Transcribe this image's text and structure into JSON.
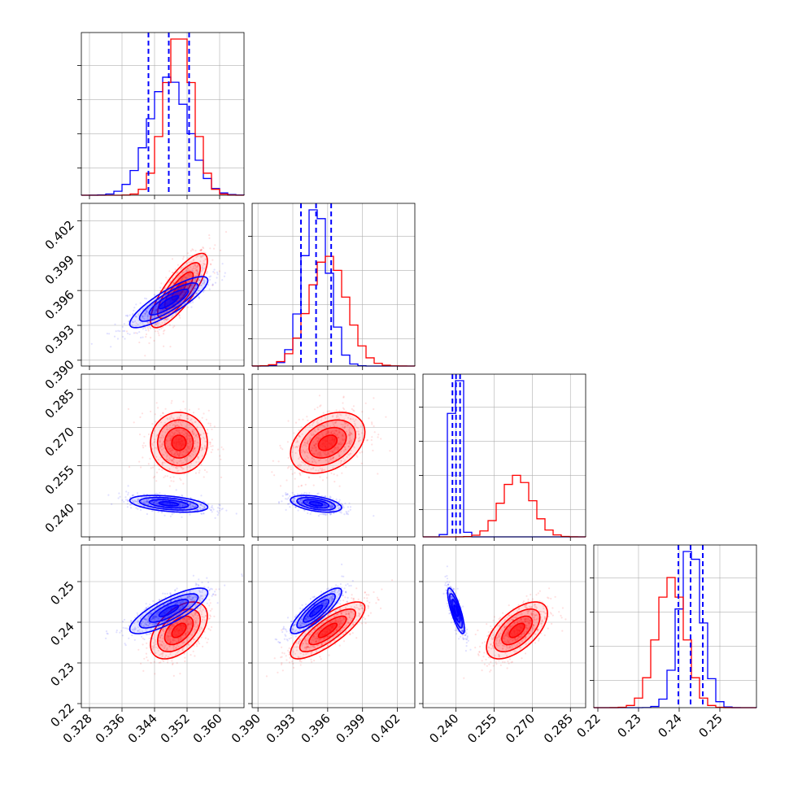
{
  "colors": {
    "series_a": "#0000ff",
    "series_b": "#ff0000",
    "grid": "#b0b0b0"
  },
  "chart_data": {
    "type": "corner",
    "parameters": [
      {
        "range": [
          0.326,
          0.366
        ],
        "ticks": [
          0.328,
          0.336,
          0.344,
          0.352,
          0.36
        ],
        "tick_labels": [
          "0.328",
          "0.336",
          "0.344",
          "0.352",
          "0.360"
        ]
      },
      {
        "range": [
          0.3895,
          0.4035
        ],
        "ticks": [
          0.39,
          0.393,
          0.396,
          0.399,
          0.402
        ],
        "tick_labels": [
          "0.390",
          "0.393",
          "0.396",
          "0.399",
          "0.402"
        ]
      },
      {
        "range": [
          0.227,
          0.291
        ],
        "ticks": [
          0.24,
          0.255,
          0.27,
          0.285
        ],
        "tick_labels": [
          "0.240",
          "0.255",
          "0.270",
          "0.285"
        ]
      },
      {
        "range": [
          0.219,
          0.259
        ],
        "ticks": [
          0.22,
          0.23,
          0.24,
          0.25
        ],
        "tick_labels": [
          "0.22",
          "0.23",
          "0.24",
          "0.25"
        ]
      }
    ],
    "series": [
      {
        "name": "",
        "color": "#0000ff",
        "mean": [
          0.3475,
          0.395,
          0.24,
          0.2428
        ],
        "std": [
          0.0048,
          0.0011,
          0.00165,
          0.0028
        ],
        "quantile_lines": [
          [
            0.3425,
            0.3475,
            0.3525
          ],
          [
            0.3937,
            0.395,
            0.3963
          ],
          [
            0.2386,
            0.24,
            0.2416
          ],
          [
            0.2398,
            0.2428,
            0.2458
          ]
        ]
      },
      {
        "name": "",
        "color": "#ff0000",
        "mean": [
          0.35,
          0.396,
          0.264,
          0.238
        ],
        "std": [
          0.0035,
          0.0016,
          0.006,
          0.0035
        ]
      }
    ],
    "correlations": [
      {
        "pair": [
          0,
          1
        ],
        "series_a": 0.85,
        "series_b": 0.8
      },
      {
        "pair": [
          0,
          2
        ],
        "series_a": -0.4,
        "series_b": 0.0
      },
      {
        "pair": [
          1,
          2
        ],
        "series_a": -0.45,
        "series_b": 0.35
      },
      {
        "pair": [
          0,
          3
        ],
        "series_a": 0.8,
        "series_b": 0.5
      },
      {
        "pair": [
          1,
          3
        ],
        "series_a": 0.85,
        "series_b": 0.8
      },
      {
        "pair": [
          2,
          3
        ],
        "series_a": -0.8,
        "series_b": 0.6
      }
    ],
    "grid": true
  }
}
